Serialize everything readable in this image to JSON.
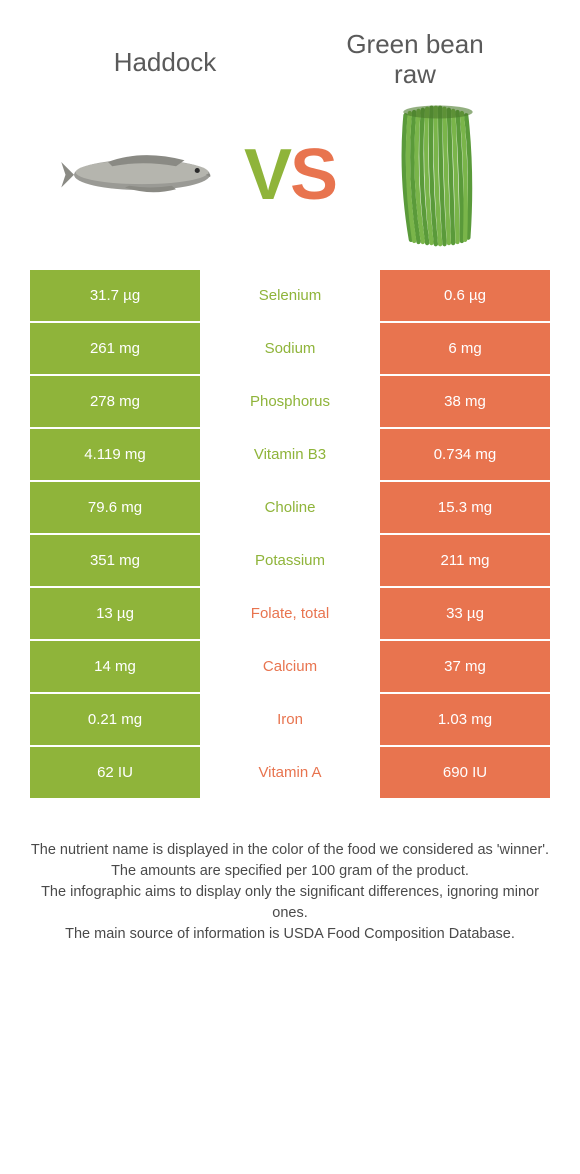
{
  "colors": {
    "green": "#8fb43a",
    "orange": "#e8744f",
    "text_gray": "#5a5a5a",
    "footer_gray": "#4a4a4a",
    "white": "#ffffff"
  },
  "header": {
    "left_title": "Haddock",
    "right_title_line1": "Green bean",
    "right_title_line2": "raw",
    "vs_v": "V",
    "vs_s": "S"
  },
  "left_food_color": "#8fb43a",
  "right_food_color": "#e8744f",
  "rows": [
    {
      "nutrient": "Selenium",
      "left": "31.7 µg",
      "right": "0.6 µg",
      "winner": "left"
    },
    {
      "nutrient": "Sodium",
      "left": "261 mg",
      "right": "6 mg",
      "winner": "left"
    },
    {
      "nutrient": "Phosphorus",
      "left": "278 mg",
      "right": "38 mg",
      "winner": "left"
    },
    {
      "nutrient": "Vitamin B3",
      "left": "4.119 mg",
      "right": "0.734 mg",
      "winner": "left"
    },
    {
      "nutrient": "Choline",
      "left": "79.6 mg",
      "right": "15.3 mg",
      "winner": "left"
    },
    {
      "nutrient": "Potassium",
      "left": "351 mg",
      "right": "211 mg",
      "winner": "left"
    },
    {
      "nutrient": "Folate, total",
      "left": "13 µg",
      "right": "33 µg",
      "winner": "right"
    },
    {
      "nutrient": "Calcium",
      "left": "14 mg",
      "right": "37 mg",
      "winner": "right"
    },
    {
      "nutrient": "Iron",
      "left": "0.21 mg",
      "right": "1.03 mg",
      "winner": "right"
    },
    {
      "nutrient": "Vitamin A",
      "left": "62 IU",
      "right": "690 IU",
      "winner": "right"
    }
  ],
  "footer": {
    "line1": "The nutrient name is displayed in the color of the food we considered as 'winner'.",
    "line2": "The amounts are specified per 100 gram of the product.",
    "line3": "The infographic aims to display only the significant differences, ignoring minor ones.",
    "line4": "The main source of information is USDA Food Composition Database."
  }
}
